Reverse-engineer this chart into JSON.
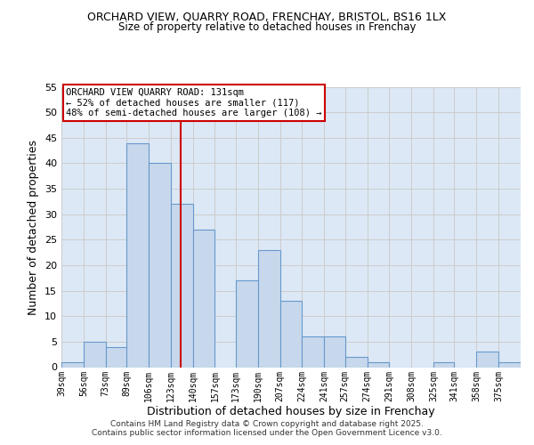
{
  "title1": "ORCHARD VIEW, QUARRY ROAD, FRENCHAY, BRISTOL, BS16 1LX",
  "title2": "Size of property relative to detached houses in Frenchay",
  "xlabel": "Distribution of detached houses by size in Frenchay",
  "ylabel": "Number of detached properties",
  "bar_labels": [
    "39sqm",
    "56sqm",
    "73sqm",
    "89sqm",
    "106sqm",
    "123sqm",
    "140sqm",
    "157sqm",
    "173sqm",
    "190sqm",
    "207sqm",
    "224sqm",
    "241sqm",
    "257sqm",
    "274sqm",
    "291sqm",
    "308sqm",
    "325sqm",
    "341sqm",
    "358sqm",
    "375sqm"
  ],
  "bar_values": [
    1,
    5,
    4,
    44,
    40,
    32,
    27,
    0,
    17,
    23,
    13,
    6,
    6,
    2,
    1,
    0,
    0,
    1,
    0,
    3,
    1
  ],
  "bin_edges": [
    39,
    56,
    73,
    89,
    106,
    123,
    140,
    157,
    173,
    190,
    207,
    224,
    241,
    257,
    274,
    291,
    308,
    325,
    341,
    358,
    375,
    392
  ],
  "bar_color": "#c8d8ec",
  "bar_edge_color": "#6699cc",
  "vline_x": 131,
  "vline_color": "#cc0000",
  "ylim": [
    0,
    55
  ],
  "yticks": [
    0,
    5,
    10,
    15,
    20,
    25,
    30,
    35,
    40,
    45,
    50,
    55
  ],
  "annotation_title": "ORCHARD VIEW QUARRY ROAD: 131sqm",
  "annotation_line1": "← 52% of detached houses are smaller (117)",
  "annotation_line2": "48% of semi-detached houses are larger (108) →",
  "annotation_box_color": "#ffffff",
  "annotation_box_edge_color": "#cc0000",
  "footer1": "Contains HM Land Registry data © Crown copyright and database right 2025.",
  "footer2": "Contains public sector information licensed under the Open Government Licence v3.0.",
  "background_color": "#ffffff",
  "grid_color": "#cccccc",
  "axes_bg_color": "#dce8f5"
}
